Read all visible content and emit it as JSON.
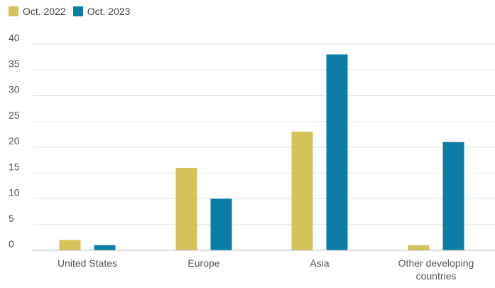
{
  "chart_data": {
    "type": "bar",
    "categories": [
      [
        "United States"
      ],
      [
        "Europe"
      ],
      [
        "Asia"
      ],
      [
        "Other developing",
        "countries"
      ]
    ],
    "series": [
      {
        "name": "Oct. 2022",
        "color": "#d4c35a",
        "values": [
          2,
          16,
          23,
          1
        ]
      },
      {
        "name": "Oct. 2023",
        "color": "#0a7ea4",
        "values": [
          1,
          10,
          38,
          21
        ]
      }
    ],
    "y_ticks": [
      "0",
      "5",
      "10",
      "15",
      "20",
      "25",
      "30",
      "35",
      "40"
    ],
    "ylim": [
      0,
      40
    ],
    "grid": true,
    "legend_position": "top-left"
  }
}
